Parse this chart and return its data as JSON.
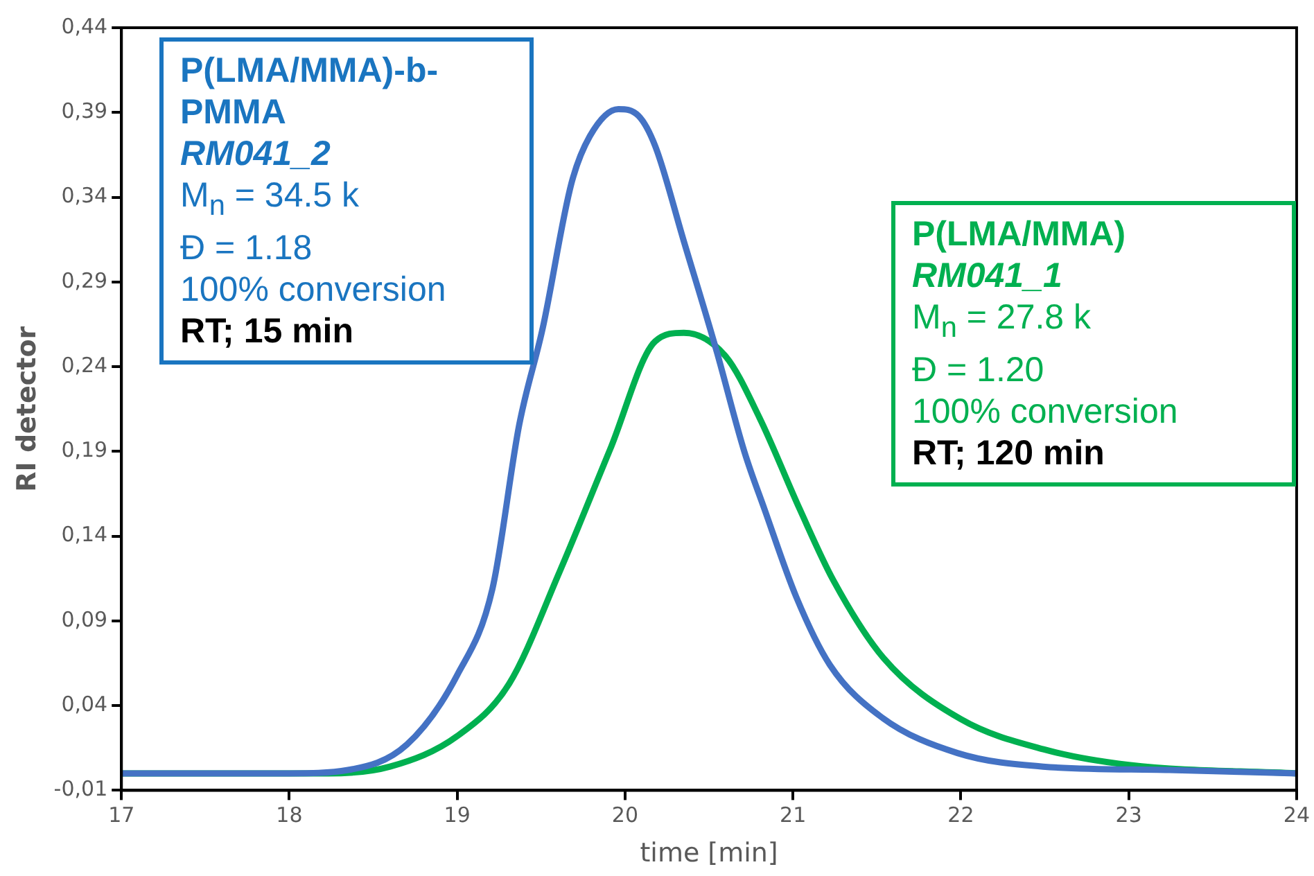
{
  "chart_data": {
    "type": "line",
    "xlabel": "time [min]",
    "ylabel": "RI detector",
    "xlim": [
      17,
      24
    ],
    "xticks": [
      17,
      18,
      19,
      20,
      21,
      22,
      23,
      24
    ],
    "ylim": [
      -0.01,
      0.44
    ],
    "yticks": [
      {
        "value": -0.01,
        "label": "-0,01"
      },
      {
        "value": 0.04,
        "label": "0,04"
      },
      {
        "value": 0.09,
        "label": "0,09"
      },
      {
        "value": 0.14,
        "label": "0,14"
      },
      {
        "value": 0.19,
        "label": "0,19"
      },
      {
        "value": 0.24,
        "label": "0,24"
      },
      {
        "value": 0.29,
        "label": "0,29"
      },
      {
        "value": 0.34,
        "label": "0,34"
      },
      {
        "value": 0.39,
        "label": "0,39"
      },
      {
        "value": 0.44,
        "label": "0,44"
      }
    ],
    "grid": false,
    "legend": false,
    "marker": "none",
    "line_style": "solid",
    "series": [
      {
        "color": "#4472c4",
        "x": [
          17,
          17.5,
          18,
          18.35,
          18.7,
          19,
          19.21,
          19.37,
          19.51,
          19.68,
          19.79,
          19.96,
          20.08,
          20.18,
          20.35,
          20.54,
          20.71,
          20.83,
          21.02,
          21.22,
          21.53,
          21.98,
          22.49,
          23.24,
          24
        ],
        "values": [
          0,
          0,
          0,
          0.002,
          0.017,
          0.058,
          0.109,
          0.206,
          0.263,
          0.348,
          0.376,
          0.392,
          0.388,
          0.37,
          0.314,
          0.251,
          0.19,
          0.156,
          0.104,
          0.064,
          0.033,
          0.012,
          0.004,
          0.002,
          0
        ]
      },
      {
        "color": "#00b050",
        "x": [
          17,
          17.5,
          18,
          18.23,
          18.6,
          19,
          19.31,
          19.61,
          19.91,
          20.18,
          20.35,
          20.6,
          20.8,
          21.04,
          21.24,
          21.54,
          22,
          22.5,
          23,
          24
        ],
        "values": [
          0,
          0,
          0,
          0,
          0.004,
          0.022,
          0.053,
          0.119,
          0.191,
          0.255,
          0.26,
          0.246,
          0.21,
          0.156,
          0.114,
          0.068,
          0.032,
          0.014,
          0.005,
          0
        ]
      }
    ],
    "annotations": [
      "P(LMA/MMA)-b-PMMA\nRM041_2\nM$_{n}$ = 34.5 k\nĐ = 1.18\n100% conversion\nRT; 15 min",
      "P(LMA/MMA)\nRM041_1\nM$_{n}$ = 27.8 k\nĐ = 1.20\n100% conversion\nRT; 120 min"
    ]
  }
}
